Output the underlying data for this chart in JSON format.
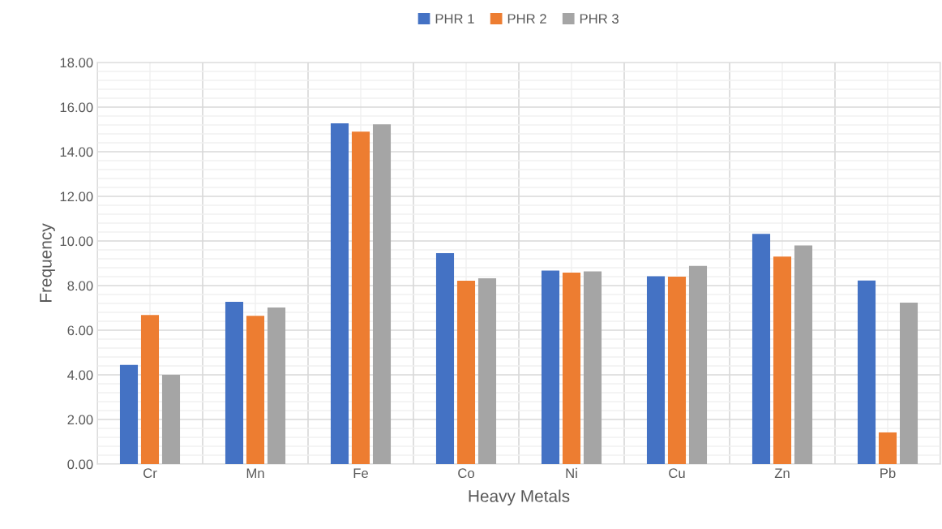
{
  "chart_data": {
    "type": "bar",
    "xlabel": "Heavy Metals",
    "ylabel": "Frequency",
    "categories": [
      "Cr",
      "Mn",
      "Fe",
      "Co",
      "Ni",
      "Cu",
      "Zn",
      "Pb"
    ],
    "series": [
      {
        "name": "PHR 1",
        "color": "#4472c4",
        "values": [
          4.45,
          7.27,
          15.27,
          9.45,
          8.67,
          8.42,
          10.32,
          8.23
        ]
      },
      {
        "name": "PHR 2",
        "color": "#ed7d31",
        "values": [
          6.68,
          6.65,
          14.9,
          8.22,
          8.58,
          8.4,
          9.3,
          1.42
        ]
      },
      {
        "name": "PHR 3",
        "color": "#a5a5a5",
        "values": [
          4.0,
          7.02,
          15.23,
          8.33,
          8.64,
          8.88,
          9.8,
          7.24
        ]
      }
    ],
    "ylim": [
      0,
      18
    ],
    "yticks": [
      {
        "value": 0,
        "label": "0.00"
      },
      {
        "value": 2,
        "label": "2.00"
      },
      {
        "value": 4,
        "label": "4.00"
      },
      {
        "value": 6,
        "label": "6.00"
      },
      {
        "value": 8,
        "label": "8.00"
      },
      {
        "value": 10,
        "label": "10.00"
      },
      {
        "value": 12,
        "label": "12.00"
      },
      {
        "value": 14,
        "label": "14.00"
      },
      {
        "value": 16,
        "label": "16.00"
      },
      {
        "value": 18,
        "label": "18.00"
      }
    ],
    "grid": true,
    "legend": "top"
  }
}
